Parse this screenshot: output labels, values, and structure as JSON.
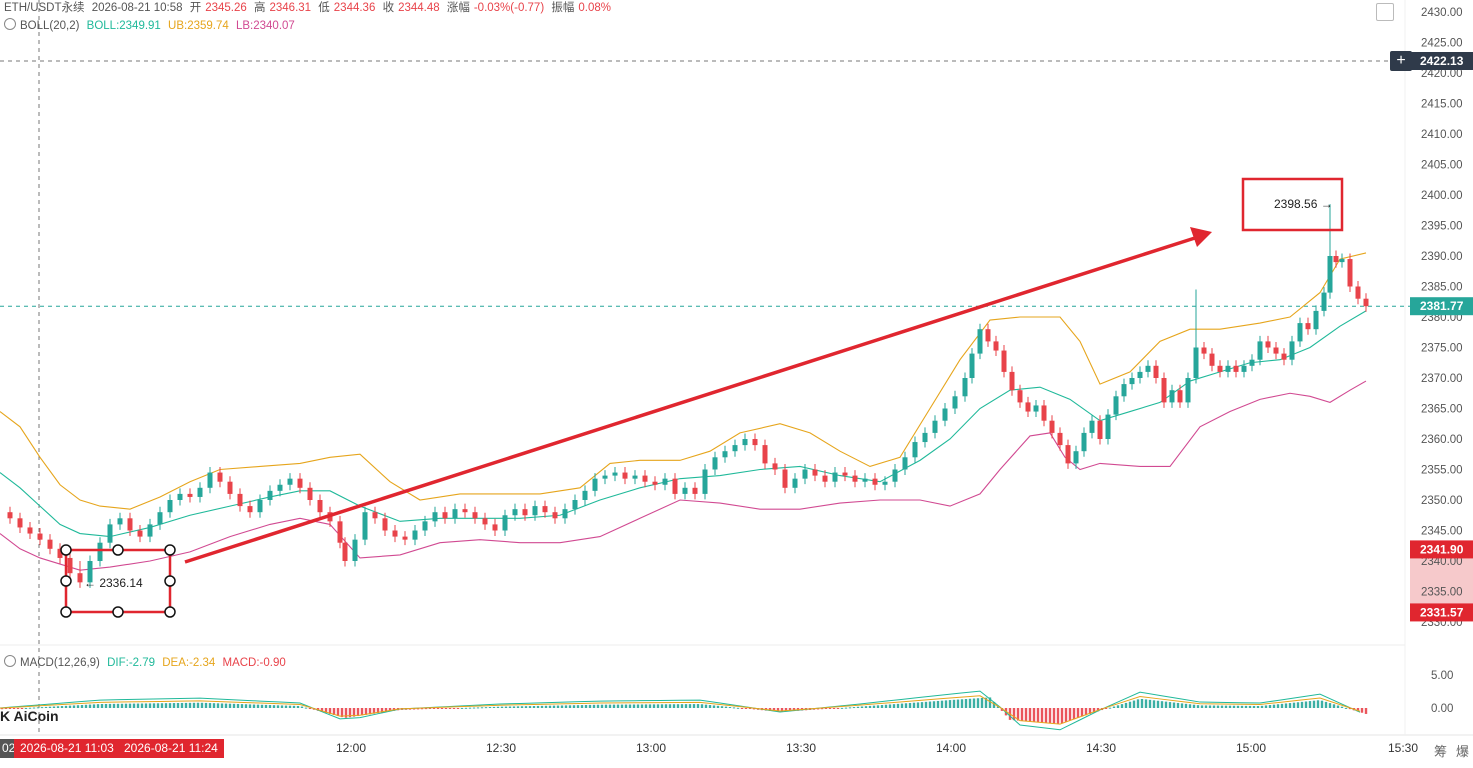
{
  "header": {
    "symbol": "ETH/USDT永续",
    "datetime": "2026-08-21 10:58",
    "open_label": "开",
    "open": "2345.26",
    "high_label": "高",
    "high": "2346.31",
    "low_label": "低",
    "low": "2344.36",
    "close_label": "收",
    "close": "2344.48",
    "change_label": "涨幅",
    "change": "-0.03%(-0.77)",
    "amplitude_label": "振幅",
    "amplitude": "0.08%"
  },
  "boll": {
    "label": "BOLL(20,2)",
    "mid": "BOLL:2349.91",
    "ub": "UB:2359.74",
    "lb": "LB:2340.07"
  },
  "macd": {
    "label": "MACD(12,26,9)",
    "dif": "DIF:-2.79",
    "dea": "DEA:-2.34",
    "macd": "MACD:-0.90"
  },
  "brand": "K AiCoin",
  "price_tags": {
    "crosshair": "2422.13",
    "last": "2381.77",
    "zone_top": "2341.90",
    "zone_bottom": "2331.57"
  },
  "annotations": {
    "low_marker": "← 2336.14",
    "high_marker": "2398.56 →"
  },
  "time_tags": {
    "start": "2026-08-21 11:03",
    "end": "2026-08-21 11:24"
  },
  "bottom_partial": "02",
  "bottom_icons": [
    "筹",
    "爆"
  ],
  "colors": {
    "up": "#e8434a",
    "down": "#26a69a",
    "boll_mid": "#20b99a",
    "boll_ub": "#e6a51c",
    "boll_lb": "#d14a92",
    "arrow": "#e0262f"
  },
  "chart_data": {
    "type": "candlestick",
    "price_axis": {
      "ylim": [
        2327,
        2432
      ],
      "ticks": [
        2330,
        2335,
        2340,
        2345,
        2350,
        2355,
        2360,
        2365,
        2370,
        2375,
        2380,
        2385,
        2390,
        2395,
        2400,
        2405,
        2410,
        2415,
        2420,
        2425,
        2430
      ]
    },
    "time_axis": {
      "labels": [
        "12:00",
        "12:30",
        "13:00",
        "13:30",
        "14:00",
        "14:30",
        "15:00",
        "15:30"
      ]
    },
    "macd_axis": {
      "ticks": [
        "5.00",
        "0.00"
      ]
    },
    "close_series_approx": [
      [
        0,
        2348.0
      ],
      [
        10,
        2347.0
      ],
      [
        20,
        2345.5
      ],
      [
        30,
        2344.5
      ],
      [
        40,
        2343.5
      ],
      [
        50,
        2342.0
      ],
      [
        60,
        2340.5
      ],
      [
        70,
        2338.0
      ],
      [
        80,
        2336.5
      ],
      [
        90,
        2340.0
      ],
      [
        100,
        2343.0
      ],
      [
        110,
        2346.0
      ],
      [
        120,
        2347.0
      ],
      [
        130,
        2345.0
      ],
      [
        140,
        2344.0
      ],
      [
        150,
        2346.0
      ],
      [
        160,
        2348.0
      ],
      [
        170,
        2350.0
      ],
      [
        180,
        2351.0
      ],
      [
        190,
        2350.5
      ],
      [
        200,
        2352.0
      ],
      [
        210,
        2354.5
      ],
      [
        220,
        2353.0
      ],
      [
        230,
        2351.0
      ],
      [
        240,
        2349.0
      ],
      [
        250,
        2348.0
      ],
      [
        260,
        2350.0
      ],
      [
        270,
        2351.5
      ],
      [
        280,
        2352.5
      ],
      [
        290,
        2353.5
      ],
      [
        300,
        2352.0
      ],
      [
        310,
        2350.0
      ],
      [
        320,
        2348.0
      ],
      [
        330,
        2346.5
      ],
      [
        340,
        2343.0
      ],
      [
        345,
        2340.0
      ],
      [
        355,
        2343.5
      ],
      [
        365,
        2348.0
      ],
      [
        375,
        2347.0
      ],
      [
        385,
        2345.0
      ],
      [
        395,
        2344.0
      ],
      [
        405,
        2343.5
      ],
      [
        415,
        2345.0
      ],
      [
        425,
        2346.5
      ],
      [
        435,
        2348.0
      ],
      [
        445,
        2347.0
      ],
      [
        455,
        2348.5
      ],
      [
        465,
        2348.0
      ],
      [
        475,
        2347.0
      ],
      [
        485,
        2346.0
      ],
      [
        495,
        2345.0
      ],
      [
        505,
        2347.5
      ],
      [
        515,
        2348.5
      ],
      [
        525,
        2347.5
      ],
      [
        535,
        2349.0
      ],
      [
        545,
        2348.0
      ],
      [
        555,
        2347.0
      ],
      [
        565,
        2348.5
      ],
      [
        575,
        2350.0
      ],
      [
        585,
        2351.5
      ],
      [
        595,
        2353.5
      ],
      [
        605,
        2354.0
      ],
      [
        615,
        2354.5
      ],
      [
        625,
        2353.5
      ],
      [
        635,
        2354.0
      ],
      [
        645,
        2353.0
      ],
      [
        655,
        2352.5
      ],
      [
        665,
        2353.5
      ],
      [
        675,
        2351.0
      ],
      [
        685,
        2352.0
      ],
      [
        695,
        2351.0
      ],
      [
        705,
        2355.0
      ],
      [
        715,
        2357.0
      ],
      [
        725,
        2358.0
      ],
      [
        735,
        2359.0
      ],
      [
        745,
        2360.0
      ],
      [
        755,
        2359.0
      ],
      [
        765,
        2356.0
      ],
      [
        775,
        2355.0
      ],
      [
        785,
        2352.0
      ],
      [
        795,
        2353.5
      ],
      [
        805,
        2355.0
      ],
      [
        815,
        2354.0
      ],
      [
        825,
        2353.0
      ],
      [
        835,
        2354.5
      ],
      [
        845,
        2354.0
      ],
      [
        855,
        2353.0
      ],
      [
        865,
        2353.5
      ],
      [
        875,
        2352.5
      ],
      [
        885,
        2353.0
      ],
      [
        895,
        2355.0
      ],
      [
        905,
        2357.0
      ],
      [
        915,
        2359.5
      ],
      [
        925,
        2361.0
      ],
      [
        935,
        2363.0
      ],
      [
        945,
        2365.0
      ],
      [
        955,
        2367.0
      ],
      [
        965,
        2370.0
      ],
      [
        972,
        2374.0
      ],
      [
        980,
        2378.0
      ],
      [
        988,
        2376.0
      ],
      [
        996,
        2374.5
      ],
      [
        1004,
        2371.0
      ],
      [
        1012,
        2368.0
      ],
      [
        1020,
        2366.0
      ],
      [
        1028,
        2364.5
      ],
      [
        1036,
        2365.5
      ],
      [
        1044,
        2363.0
      ],
      [
        1052,
        2361.0
      ],
      [
        1060,
        2359.0
      ],
      [
        1068,
        2356.0
      ],
      [
        1076,
        2358.0
      ],
      [
        1084,
        2361.0
      ],
      [
        1092,
        2363.0
      ],
      [
        1100,
        2360.0
      ],
      [
        1108,
        2364.0
      ],
      [
        1116,
        2367.0
      ],
      [
        1124,
        2369.0
      ],
      [
        1132,
        2370.0
      ],
      [
        1140,
        2371.0
      ],
      [
        1148,
        2372.0
      ],
      [
        1156,
        2370.0
      ],
      [
        1164,
        2366.0
      ],
      [
        1172,
        2368.0
      ],
      [
        1180,
        2366.0
      ],
      [
        1188,
        2370.0
      ],
      [
        1196,
        2375.0
      ],
      [
        1204,
        2374.0
      ],
      [
        1212,
        2372.0
      ],
      [
        1220,
        2371.0
      ],
      [
        1228,
        2372.0
      ],
      [
        1236,
        2371.0
      ],
      [
        1244,
        2372.0
      ],
      [
        1252,
        2373.0
      ],
      [
        1260,
        2376.0
      ],
      [
        1268,
        2375.0
      ],
      [
        1276,
        2374.0
      ],
      [
        1284,
        2373.0
      ],
      [
        1292,
        2376.0
      ],
      [
        1300,
        2379.0
      ],
      [
        1308,
        2378.0
      ],
      [
        1316,
        2381.0
      ],
      [
        1324,
        2384.0
      ],
      [
        1330,
        2390.0
      ],
      [
        1336,
        2389.0
      ],
      [
        1342,
        2389.5
      ],
      [
        1350,
        2385.0
      ],
      [
        1358,
        2383.0
      ],
      [
        1366,
        2381.77
      ]
    ],
    "boll_upper_approx": [
      [
        0,
        2364.5
      ],
      [
        20,
        2362.0
      ],
      [
        40,
        2357.0
      ],
      [
        60,
        2352.5
      ],
      [
        80,
        2350.0
      ],
      [
        100,
        2349.0
      ],
      [
        130,
        2348.5
      ],
      [
        160,
        2350.5
      ],
      [
        190,
        2353.0
      ],
      [
        220,
        2355.0
      ],
      [
        260,
        2355.5
      ],
      [
        300,
        2356.0
      ],
      [
        330,
        2357.0
      ],
      [
        360,
        2357.5
      ],
      [
        390,
        2353.0
      ],
      [
        420,
        2350.0
      ],
      [
        460,
        2351.0
      ],
      [
        500,
        2351.0
      ],
      [
        540,
        2351.0
      ],
      [
        580,
        2352.0
      ],
      [
        610,
        2356.0
      ],
      [
        640,
        2356.5
      ],
      [
        680,
        2356.5
      ],
      [
        710,
        2358.0
      ],
      [
        740,
        2361.0
      ],
      [
        780,
        2362.5
      ],
      [
        810,
        2361.0
      ],
      [
        840,
        2358.0
      ],
      [
        870,
        2355.5
      ],
      [
        900,
        2357.0
      ],
      [
        930,
        2365.0
      ],
      [
        960,
        2373.0
      ],
      [
        990,
        2379.5
      ],
      [
        1020,
        2380.0
      ],
      [
        1060,
        2380.0
      ],
      [
        1080,
        2376.0
      ],
      [
        1100,
        2369.0
      ],
      [
        1130,
        2371.0
      ],
      [
        1160,
        2376.0
      ],
      [
        1190,
        2378.0
      ],
      [
        1220,
        2378.0
      ],
      [
        1260,
        2379.0
      ],
      [
        1290,
        2380.0
      ],
      [
        1320,
        2384.0
      ],
      [
        1340,
        2389.5
      ],
      [
        1366,
        2390.5
      ]
    ],
    "boll_lower_approx": [
      [
        0,
        2344.5
      ],
      [
        20,
        2342.0
      ],
      [
        40,
        2340.5
      ],
      [
        60,
        2339.5
      ],
      [
        80,
        2338.5
      ],
      [
        110,
        2339.0
      ],
      [
        150,
        2340.0
      ],
      [
        190,
        2341.5
      ],
      [
        230,
        2344.0
      ],
      [
        270,
        2346.0
      ],
      [
        300,
        2347.0
      ],
      [
        330,
        2346.0
      ],
      [
        360,
        2340.5
      ],
      [
        400,
        2341.0
      ],
      [
        440,
        2343.0
      ],
      [
        480,
        2343.5
      ],
      [
        520,
        2343.0
      ],
      [
        560,
        2343.0
      ],
      [
        600,
        2344.0
      ],
      [
        640,
        2347.0
      ],
      [
        680,
        2350.0
      ],
      [
        720,
        2349.5
      ],
      [
        760,
        2348.5
      ],
      [
        800,
        2348.5
      ],
      [
        840,
        2349.5
      ],
      [
        880,
        2350.0
      ],
      [
        920,
        2350.0
      ],
      [
        950,
        2349.0
      ],
      [
        980,
        2351.0
      ],
      [
        1000,
        2355.0
      ],
      [
        1030,
        2360.5
      ],
      [
        1050,
        2361.0
      ],
      [
        1065,
        2357.0
      ],
      [
        1080,
        2355.0
      ],
      [
        1100,
        2356.0
      ],
      [
        1140,
        2355.5
      ],
      [
        1170,
        2355.5
      ],
      [
        1200,
        2362.0
      ],
      [
        1230,
        2364.5
      ],
      [
        1260,
        2366.5
      ],
      [
        1290,
        2367.5
      ],
      [
        1310,
        2367.0
      ],
      [
        1330,
        2366.0
      ],
      [
        1350,
        2368.0
      ],
      [
        1366,
        2369.5
      ]
    ],
    "boll_mid_approx": [
      [
        0,
        2354.5
      ],
      [
        20,
        2352.0
      ],
      [
        40,
        2349.0
      ],
      [
        60,
        2346.0
      ],
      [
        80,
        2344.5
      ],
      [
        110,
        2344.0
      ],
      [
        150,
        2345.5
      ],
      [
        190,
        2347.5
      ],
      [
        230,
        2349.0
      ],
      [
        270,
        2350.5
      ],
      [
        300,
        2351.5
      ],
      [
        330,
        2351.5
      ],
      [
        360,
        2349.0
      ],
      [
        400,
        2346.5
      ],
      [
        440,
        2347.0
      ],
      [
        480,
        2347.0
      ],
      [
        520,
        2347.0
      ],
      [
        560,
        2347.5
      ],
      [
        600,
        2350.0
      ],
      [
        640,
        2352.0
      ],
      [
        680,
        2353.5
      ],
      [
        720,
        2354.0
      ],
      [
        760,
        2355.0
      ],
      [
        800,
        2355.5
      ],
      [
        840,
        2354.0
      ],
      [
        880,
        2353.0
      ],
      [
        920,
        2356.5
      ],
      [
        950,
        2360.0
      ],
      [
        980,
        2365.0
      ],
      [
        1010,
        2368.0
      ],
      [
        1040,
        2368.5
      ],
      [
        1070,
        2366.5
      ],
      [
        1100,
        2363.0
      ],
      [
        1130,
        2364.5
      ],
      [
        1160,
        2366.0
      ],
      [
        1190,
        2369.5
      ],
      [
        1220,
        2371.0
      ],
      [
        1250,
        2372.5
      ],
      [
        1280,
        2373.0
      ],
      [
        1310,
        2375.0
      ],
      [
        1340,
        2378.5
      ],
      [
        1366,
        2381.0
      ]
    ],
    "annotated_low": 2336.14,
    "annotated_high": 2398.56,
    "macd_hist_approx": [
      [
        0,
        -0.2
      ],
      [
        100,
        0.6
      ],
      [
        200,
        0.8
      ],
      [
        300,
        0.3
      ],
      [
        345,
        -1.5
      ],
      [
        400,
        -0.3
      ],
      [
        500,
        0.2
      ],
      [
        600,
        0.5
      ],
      [
        700,
        0.6
      ],
      [
        780,
        -0.6
      ],
      [
        850,
        0.1
      ],
      [
        950,
        1.2
      ],
      [
        990,
        1.6
      ],
      [
        1010,
        -1.8
      ],
      [
        1060,
        -2.4
      ],
      [
        1100,
        -0.4
      ],
      [
        1140,
        1.4
      ],
      [
        1200,
        0.4
      ],
      [
        1260,
        0.3
      ],
      [
        1320,
        1.2
      ],
      [
        1366,
        -0.9
      ]
    ]
  }
}
